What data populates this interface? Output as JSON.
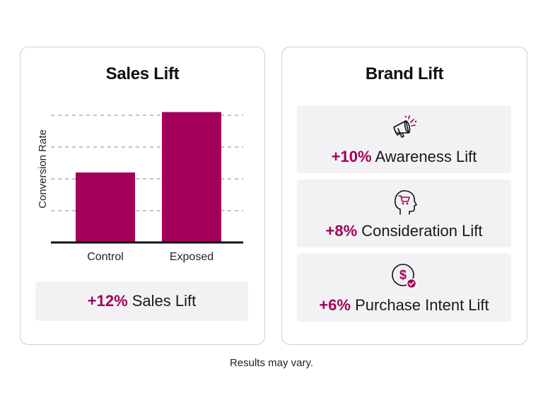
{
  "sales_card": {
    "title": "Sales Lift",
    "stat_value": "+12%",
    "stat_label": " Sales Lift"
  },
  "brand_card": {
    "title": "Brand Lift",
    "items": [
      {
        "value": "+10%",
        "label": " Awareness Lift",
        "icon": "megaphone-icon"
      },
      {
        "value": "+8%",
        "label": " Consideration Lift",
        "icon": "head-cart-icon"
      },
      {
        "value": "+6%",
        "label": " Purchase Intent Lift",
        "icon": "dollar-check-icon"
      }
    ]
  },
  "chart_data": {
    "type": "bar",
    "categories": [
      "Control",
      "Exposed"
    ],
    "values": [
      2.2,
      4.1
    ],
    "ylabel": "Conversion Rate",
    "ylim": [
      0,
      4
    ],
    "grid": true,
    "bar_color": "#a3005a"
  },
  "footer": {
    "note": "Results may vary."
  },
  "colors": {
    "accent": "#a3005a",
    "stat_background": "#f2f2f4"
  }
}
